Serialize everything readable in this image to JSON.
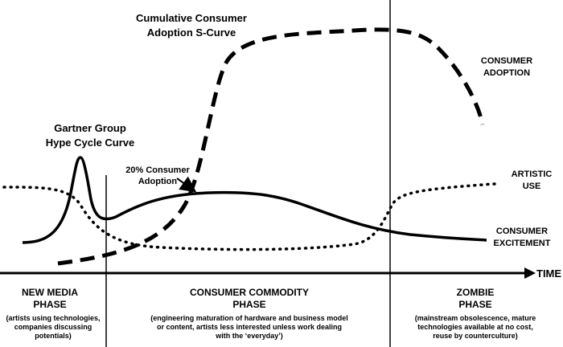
{
  "labels": {
    "s_curve_title_line1": "Cumulative Consumer",
    "s_curve_title_line2": "Adoption S-Curve",
    "hype_title_line1": "Gartner Group",
    "hype_title_line2": "Hype Cycle Curve",
    "twenty_pct_line1": "20% Consumer",
    "twenty_pct_line2": "Adoption",
    "consumer_adoption_line1": "CONSUMER",
    "consumer_adoption_line2": "ADOPTION",
    "artistic_use_line1": "ARTISTIC",
    "artistic_use_line2": "USE",
    "consumer_excitement_line1": "CONSUMER",
    "consumer_excitement_line2": "EXCITEMENT",
    "time": "TIME"
  },
  "phases": [
    {
      "title_line1": "NEW MEDIA",
      "title_line2": "PHASE",
      "desc_lines": [
        "(artists using technologies,",
        "companies discussing",
        "potentials)"
      ]
    },
    {
      "title_line1": "CONSUMER COMMODITY",
      "title_line2": "PHASE",
      "desc_lines": [
        "(engineering maturation of hardware and business model",
        "or content, artists less interested unless work dealing",
        "with the ‘everyday’)"
      ]
    },
    {
      "title_line1": "ZOMBIE",
      "title_line2": "PHASE",
      "desc_lines": [
        "(mainstream obsolescence, mature",
        "technologies available at no cost,",
        "reuse by counterculture)"
      ]
    }
  ],
  "colors": {
    "ink": "#000000",
    "background": "#ffffff"
  }
}
